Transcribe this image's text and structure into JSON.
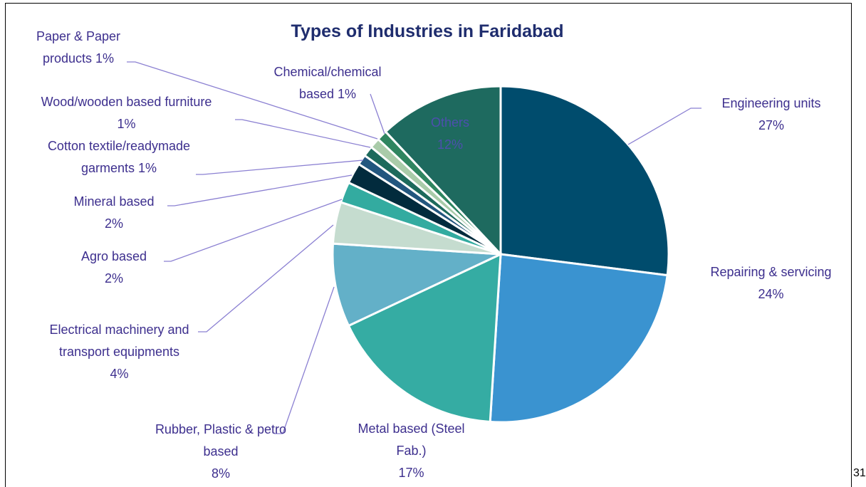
{
  "chart_data": {
    "type": "pie",
    "title": "Types of Industries in Faridabad",
    "categories": [
      "Engineering units",
      "Repairing & servicing",
      "Metal based (Steel Fab.)",
      "Rubber, Plastic & petro based",
      "Electrical machinery and transport equipments",
      "Agro based",
      "Mineral based",
      "Cotton textile/readymade garments",
      "Wood/wooden based furniture",
      "Paper & Paper products",
      "Chemical/chemical based",
      "Others"
    ],
    "values": [
      27,
      24,
      17,
      8,
      4,
      2,
      2,
      1,
      1,
      1,
      1,
      12
    ],
    "value_labels": [
      "27%",
      "24%",
      "17%",
      "8%",
      "4%",
      "2%",
      "2%",
      "1%",
      "1%",
      "1%",
      "1%",
      "12%"
    ],
    "colors": [
      "#004c6d",
      "#3a93d0",
      "#35aca3",
      "#63b0c8",
      "#c5dccf",
      "#33aba0",
      "#022b3d",
      "#22567e",
      "#1d6a5c",
      "#a9cba9",
      "#2f8560",
      "#1e6a5f"
    ]
  },
  "page_number": "31"
}
